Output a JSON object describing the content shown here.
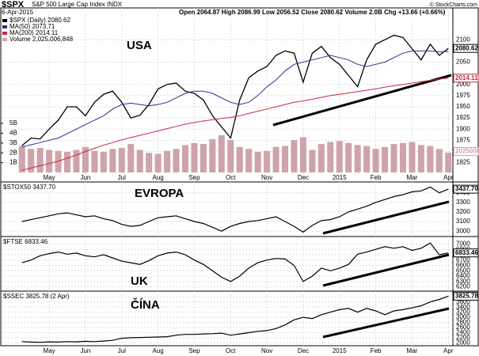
{
  "chart_data": [
    {
      "type": "line",
      "symbol": "$SPX",
      "title": "S&P 500 Large Cap Index INDX",
      "date": "6-Apr-2015",
      "ohlc": "Open 2064.87 High 2086.99 Low 2056.52 Close 2080.62 Volume 2.0B Chg +13.66 (+0.66%)",
      "watermark": "© StockCharts.com",
      "annotation": "USA",
      "categories": [
        null,
        null,
        null,
        "May",
        null,
        null,
        null,
        "Jun",
        null,
        null,
        null,
        "Jul",
        null,
        null,
        null,
        "Aug",
        null,
        null,
        null,
        "Sep",
        null,
        null,
        null,
        "Oct",
        null,
        null,
        null,
        "Nov",
        null,
        null,
        null,
        "Dec",
        null,
        null,
        null,
        "2015",
        null,
        null,
        null,
        "Feb",
        null,
        null,
        null,
        "Mar",
        null,
        null,
        null,
        "Apr"
      ],
      "ylim": [
        1803,
        2150
      ],
      "yticks": [
        1825,
        1850,
        1875,
        1900,
        1925,
        1950,
        1975,
        2000,
        2050,
        2100
      ],
      "y2lim": [
        0,
        15.8
      ],
      "y2ticks": [
        {
          "value": 1,
          "label": "1B"
        },
        {
          "value": 2,
          "label": "2B"
        },
        {
          "value": 3,
          "label": "3B"
        },
        {
          "value": 4,
          "label": "4B"
        },
        {
          "value": 5,
          "label": "5B"
        }
      ],
      "grid": true,
      "series": [
        {
          "name": "$SPX (Daily) 2080.62",
          "color": "#000000",
          "last_label": "2080.62",
          "values": [
            1863,
            1880,
            1878,
            1900,
            1920,
            1950,
            1950,
            1930,
            1960,
            1978,
            1985,
            1960,
            1925,
            1931,
            1955,
            1990,
            2000,
            2003,
            1985,
            1980,
            1965,
            1930,
            1905,
            1880,
            1965,
            2015,
            2030,
            2040,
            2065,
            2075,
            2070,
            2005,
            2070,
            2085,
            2060,
            2045,
            2020,
            1995,
            2055,
            2090,
            2100,
            2110,
            2105,
            2080,
            2055,
            2090,
            2065,
            2080.62
          ]
        },
        {
          "name": "MA(50) 2073.71",
          "color": "#2e2e8f",
          "values": [
            1860,
            1865,
            1870,
            1875,
            1880,
            1890,
            1900,
            1910,
            1920,
            1930,
            1945,
            1955,
            1958,
            1955,
            1952,
            1955,
            1960,
            1970,
            1980,
            1985,
            1985,
            1980,
            1970,
            1960,
            1955,
            1960,
            1975,
            1995,
            2010,
            2030,
            2045,
            2050,
            2055,
            2060,
            2065,
            2060,
            2055,
            2045,
            2040,
            2045,
            2050,
            2060,
            2070,
            2075,
            2075,
            2075,
            2073,
            2073.71
          ]
        },
        {
          "name": "MA(200) 2014.11",
          "color": "#c8283c",
          "last_label": "2014.11",
          "values": [
            1808,
            1813,
            1818,
            1823,
            1828,
            1835,
            1842,
            1850,
            1857,
            1864,
            1870,
            1876,
            1881,
            1886,
            1891,
            1896,
            1901,
            1906,
            1911,
            1915,
            1918,
            1921,
            1924,
            1926,
            1930,
            1935,
            1940,
            1945,
            1950,
            1955,
            1960,
            1963,
            1967,
            1971,
            1975,
            1978,
            1981,
            1984,
            1987,
            1990,
            1994,
            1997,
            2000,
            2003,
            2006,
            2009,
            2012,
            2014.11
          ]
        },
        {
          "name": "Volume 2,025,006,848",
          "type": "bar",
          "axis": "y2",
          "color": "#cfa3aa",
          "last_label": "2025006",
          "values": [
            2.7,
            2.4,
            2.5,
            2.3,
            2.2,
            2.1,
            2.3,
            2.6,
            2.2,
            2.1,
            2.4,
            2.5,
            2.9,
            2.3,
            2.0,
            1.9,
            2.2,
            2.4,
            2.8,
            3.0,
            2.9,
            3.4,
            3.8,
            3.3,
            2.6,
            2.4,
            2.1,
            2.2,
            2.6,
            2.7,
            3.3,
            3.6,
            2.3,
            2.9,
            3.1,
            3.2,
            3.0,
            2.8,
            2.7,
            2.4,
            2.6,
            2.9,
            3.0,
            3.1,
            2.8,
            2.7,
            2.4,
            2.025
          ]
        }
      ]
    },
    {
      "type": "line",
      "title": "$STOX50 3437.70",
      "annotation": "EVROPA",
      "color": "#000000",
      "last_label": "3437.70",
      "ylim": [
        2960,
        3480
      ],
      "yticks": [
        3000,
        3100,
        3200,
        3300,
        3400
      ],
      "grid": true,
      "values": [
        3100,
        3120,
        3140,
        3160,
        3180,
        3190,
        3170,
        3150,
        3160,
        3130,
        3110,
        3070,
        3050,
        3060,
        3100,
        3140,
        3150,
        3160,
        3130,
        3100,
        3080,
        3040,
        3000,
        3050,
        3080,
        3100,
        3110,
        3130,
        3150,
        3100,
        3050,
        2990,
        3060,
        3110,
        3120,
        3150,
        3200,
        3230,
        3260,
        3300,
        3330,
        3360,
        3380,
        3410,
        3420,
        3460,
        3400,
        3437.7
      ]
    },
    {
      "type": "line",
      "title": "$FTSE 6833.46",
      "annotation": "UK",
      "color": "#000000",
      "last_label": "6833.46",
      "ylim": [
        6150,
        7080
      ],
      "yticks": [
        6200,
        6300,
        6400,
        6500,
        6600,
        6700,
        6800,
        6900,
        7000
      ],
      "grid": true,
      "values": [
        6650,
        6700,
        6780,
        6820,
        6850,
        6810,
        6830,
        6780,
        6760,
        6800,
        6740,
        6680,
        6650,
        6620,
        6690,
        6780,
        6830,
        6850,
        6800,
        6700,
        6620,
        6500,
        6380,
        6300,
        6400,
        6550,
        6650,
        6700,
        6730,
        6720,
        6600,
        6300,
        6400,
        6550,
        6500,
        6550,
        6620,
        6810,
        6850,
        6900,
        6950,
        6920,
        6950,
        6880,
        6920,
        7020,
        6800,
        6833.46
      ]
    },
    {
      "type": "line",
      "title": "$SSEC 3825.78 (2 Apr)",
      "annotation": "ČÍNA",
      "color": "#000000",
      "last_label": "3825.78",
      "categories": [
        null,
        null,
        null,
        "May",
        null,
        null,
        null,
        "Jun",
        null,
        null,
        null,
        "Jul",
        null,
        null,
        null,
        "Aug",
        null,
        null,
        null,
        "Sep",
        null,
        null,
        null,
        "Oct",
        null,
        null,
        null,
        "Nov",
        null,
        null,
        null,
        "Dec",
        null,
        null,
        null,
        "2015",
        null,
        null,
        null,
        "Feb",
        null,
        null,
        null,
        "Mar",
        null,
        null,
        null,
        "Apr"
      ],
      "ylim": [
        1950,
        3900
      ],
      "yticks": [
        2000,
        2200,
        2400,
        2600,
        2800,
        3000,
        3200,
        3400,
        3600,
        3800
      ],
      "grid": true,
      "values": [
        2050,
        2030,
        2020,
        2040,
        2030,
        2050,
        2040,
        2060,
        2050,
        2070,
        2100,
        2180,
        2200,
        2210,
        2220,
        2230,
        2240,
        2300,
        2330,
        2330,
        2350,
        2360,
        2380,
        2300,
        2350,
        2400,
        2450,
        2480,
        2560,
        2700,
        2900,
        3000,
        2950,
        3100,
        3200,
        3300,
        3350,
        3200,
        3350,
        3250,
        3100,
        3250,
        3300,
        3370,
        3450,
        3600,
        3700,
        3825.78
      ]
    }
  ]
}
